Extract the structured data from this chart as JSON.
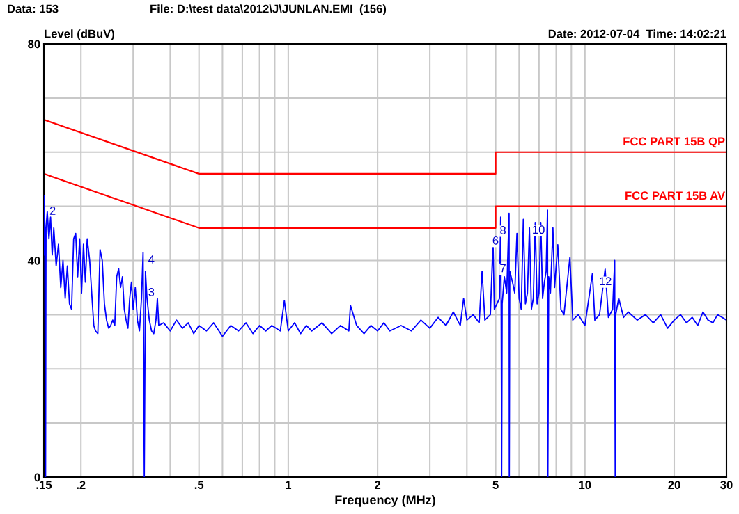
{
  "chart_data": {
    "type": "line",
    "xlabel": "Frequency (MHz)",
    "ylabel": "Level (dBuV)",
    "annotations": [
      "Data: 153",
      "File: D:\\test data\\2012\\J\\JUNLAN.EMI  (156)",
      "Date: 2012-07-04  Time: 14:02:21",
      {
        "text": "2",
        "x": 0.152,
        "y": 49
      },
      {
        "text": "4",
        "x": 0.327,
        "y": 40
      },
      {
        "text": "3",
        "x": 0.327,
        "y": 34
      },
      {
        "text": "6",
        "x": 5.24,
        "y": 43.5
      },
      {
        "text": "8",
        "x": 5.55,
        "y": 45.4
      },
      {
        "text": "7",
        "x": 5.55,
        "y": 38.4
      },
      {
        "text": "10",
        "x": 7.5,
        "y": 45.5
      },
      {
        "text": "12",
        "x": 12.6,
        "y": 36
      }
    ],
    "log": "x",
    "xlim": [
      0.15,
      30
    ],
    "ylim": [
      0,
      80
    ],
    "xticks": [
      {
        "value": 0.15,
        "label": ".15"
      },
      {
        "value": 0.2,
        "label": ".2"
      },
      {
        "value": 0.3,
        "label": null
      },
      {
        "value": 0.4,
        "label": null
      },
      {
        "value": 0.5,
        "label": ".5"
      },
      {
        "value": 0.6,
        "label": null
      },
      {
        "value": 0.7,
        "label": null
      },
      {
        "value": 0.8,
        "label": null
      },
      {
        "value": 0.9,
        "label": null
      },
      1,
      2,
      {
        "value": 3,
        "label": null
      },
      {
        "value": 4,
        "label": null
      },
      5,
      {
        "value": 6,
        "label": null
      },
      {
        "value": 7,
        "label": null
      },
      {
        "value": 8,
        "label": null
      },
      {
        "value": 9,
        "label": null
      },
      10,
      20,
      30
    ],
    "yticks": [
      0,
      {
        "value": 10,
        "label": null
      },
      {
        "value": 20,
        "label": null
      },
      {
        "value": 30,
        "label": null
      },
      40,
      {
        "value": 50,
        "label": null
      },
      {
        "value": 60,
        "label": null
      },
      {
        "value": 70,
        "label": null
      },
      80
    ],
    "grid": true,
    "legend": false,
    "series": [
      {
        "color": "#0000ff",
        "x": [
          0.15,
          0.1505,
          0.151,
          0.152,
          0.1525,
          0.154,
          0.156,
          0.158,
          0.16,
          0.162,
          0.165,
          0.168,
          0.171,
          0.174,
          0.177,
          0.18,
          0.183,
          0.186,
          0.189,
          0.192,
          0.195,
          0.198,
          0.201,
          0.204,
          0.207,
          0.21,
          0.214,
          0.218,
          0.221,
          0.224,
          0.228,
          0.232,
          0.236,
          0.24,
          0.244,
          0.248,
          0.252,
          0.256,
          0.26,
          0.264,
          0.268,
          0.272,
          0.276,
          0.28,
          0.284,
          0.288,
          0.292,
          0.296,
          0.3,
          0.305,
          0.31,
          0.315,
          0.32,
          0.324,
          0.327,
          0.33,
          0.334,
          0.34,
          0.346,
          0.352,
          0.358,
          0.362,
          0.366,
          0.38,
          0.4,
          0.42,
          0.44,
          0.46,
          0.48,
          0.5,
          0.53,
          0.56,
          0.6,
          0.64,
          0.68,
          0.72,
          0.76,
          0.8,
          0.84,
          0.88,
          0.94,
          0.97,
          1.0,
          1.05,
          1.1,
          1.15,
          1.2,
          1.3,
          1.4,
          1.5,
          1.6,
          1.62,
          1.7,
          1.8,
          1.9,
          2.0,
          2.1,
          2.2,
          2.4,
          2.6,
          2.8,
          3.0,
          3.2,
          3.4,
          3.6,
          3.8,
          3.9,
          4.0,
          4.2,
          4.4,
          4.5,
          4.6,
          4.8,
          4.9,
          4.95,
          5.05,
          5.15,
          5.2,
          5.22,
          5.24,
          5.26,
          5.35,
          5.45,
          5.55,
          5.56,
          5.58,
          5.7,
          5.8,
          5.9,
          6.0,
          6.1,
          6.2,
          6.3,
          6.4,
          6.5,
          6.6,
          6.7,
          6.8,
          6.9,
          7.0,
          7.1,
          7.2,
          7.3,
          7.4,
          7.48,
          7.5,
          7.55,
          7.65,
          7.8,
          7.9,
          8.1,
          8.3,
          8.5,
          8.9,
          9.1,
          9.5,
          10.0,
          10.6,
          10.8,
          11.2,
          11.7,
          12.0,
          12.4,
          12.6,
          12.65,
          12.7,
          13.0,
          13.5,
          14,
          15,
          16,
          17,
          18,
          19,
          20,
          21,
          22,
          23,
          24,
          25,
          26,
          27,
          28,
          29,
          30
        ],
        "values": [
          41,
          52,
          47,
          0,
          46,
          49,
          44,
          48,
          41,
          46,
          39,
          43,
          35,
          40,
          33,
          39,
          32,
          31,
          44,
          45,
          37,
          44,
          34,
          43,
          36,
          44,
          40,
          33,
          28,
          27,
          26.5,
          42,
          40,
          32,
          29,
          27.5,
          28,
          29,
          28,
          37,
          38.5,
          35,
          37,
          31,
          29,
          27.5,
          33,
          36,
          31,
          35,
          29,
          27,
          33,
          41.5,
          0,
          38,
          33,
          29,
          27,
          26.5,
          29,
          33,
          28,
          28.5,
          27,
          29,
          27.5,
          28.5,
          26.5,
          28,
          27,
          28.5,
          26,
          28,
          27,
          28.5,
          26.5,
          28,
          27,
          28,
          27,
          32.6,
          27,
          28.5,
          26.5,
          28,
          27,
          28.5,
          26.5,
          28,
          27,
          31.7,
          28,
          26.5,
          28,
          27,
          28.5,
          27,
          28,
          27,
          29,
          27.5,
          29.5,
          28,
          30.5,
          28,
          33,
          29,
          30,
          28.5,
          38,
          29,
          30,
          43.5,
          31,
          32,
          33,
          48,
          30,
          0,
          32,
          37,
          34,
          48.7,
          0,
          38,
          36,
          34,
          45,
          33,
          31,
          47.6,
          32,
          34,
          46,
          31,
          33,
          47,
          32,
          34,
          47,
          33,
          36,
          38,
          49.3,
          0,
          37,
          34,
          46,
          35,
          42.9,
          31,
          30,
          40.6,
          29,
          30,
          28,
          37.6,
          29,
          30,
          38.4,
          29.5,
          31,
          40,
          0,
          30,
          33,
          29.5,
          30.5,
          29,
          30,
          28.5,
          30,
          27.5,
          29,
          30,
          28.5,
          29.5,
          28,
          30.5,
          29,
          28.5,
          30,
          29.5,
          29
        ]
      },
      {
        "name": "FCC PART 15B QP",
        "color": "#ff0000",
        "x": [
          0.15,
          0.5,
          5,
          5,
          30
        ],
        "values": [
          66,
          56,
          56,
          60,
          60
        ]
      },
      {
        "name": "FCC PART 15B AV",
        "color": "#ff0000",
        "x": [
          0.15,
          0.5,
          5,
          5,
          30
        ],
        "values": [
          56,
          46,
          46,
          50,
          50
        ]
      }
    ]
  }
}
